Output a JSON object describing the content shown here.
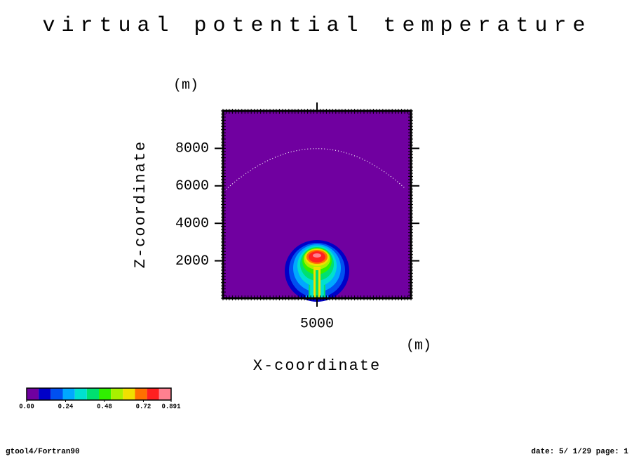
{
  "chart_data": {
    "type": "contour",
    "title": "virtual potential temperature",
    "x_label": "X-coordinate",
    "x_unit": "(m)",
    "y_label": "Z-coordinate",
    "y_unit": "(m)",
    "xlim": [
      0,
      10000
    ],
    "xticks": [
      5000
    ],
    "ylim": [
      0,
      10000
    ],
    "yticks": [
      2000,
      4000,
      6000,
      8000
    ],
    "colorbar": {
      "lim": [
        0,
        0.891
      ],
      "colors": [
        "#7000a0",
        "#0000c8",
        "#0050f0",
        "#00a8ff",
        "#00e0d0",
        "#00e070",
        "#30f000",
        "#a8f000",
        "#f0e000",
        "#ff7000",
        "#ff2020",
        "#ff8090"
      ],
      "ticks": [
        {
          "value": 0,
          "label": "0.00"
        },
        {
          "value": 0.24,
          "label": "0.24"
        },
        {
          "value": 0.48,
          "label": "0.48"
        },
        {
          "value": 0.72,
          "label": "0.72"
        },
        0.891
      ]
    },
    "footer_left": "gtool4/Fortran90",
    "footer_right": "date: 5/ 1/29 page: 1"
  }
}
